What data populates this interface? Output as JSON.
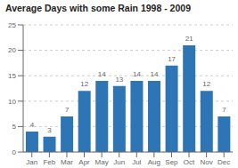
{
  "chart_data": {
    "type": "bar",
    "title": "Average Days with some Rain 1998 - 2009",
    "categories": [
      "Jan",
      "Feb",
      "Mar",
      "Apr",
      "May",
      "Jun",
      "Jul",
      "Aug",
      "Sep",
      "Oct",
      "Nov",
      "Dec"
    ],
    "values": [
      4,
      3,
      7,
      12,
      14,
      13,
      14,
      14,
      17,
      21,
      12,
      7
    ],
    "color": "#2E75B6",
    "ylim": [
      0,
      25
    ],
    "yticks": [
      0,
      5,
      10,
      15,
      20,
      25
    ],
    "grid": true,
    "data_labels": true
  }
}
